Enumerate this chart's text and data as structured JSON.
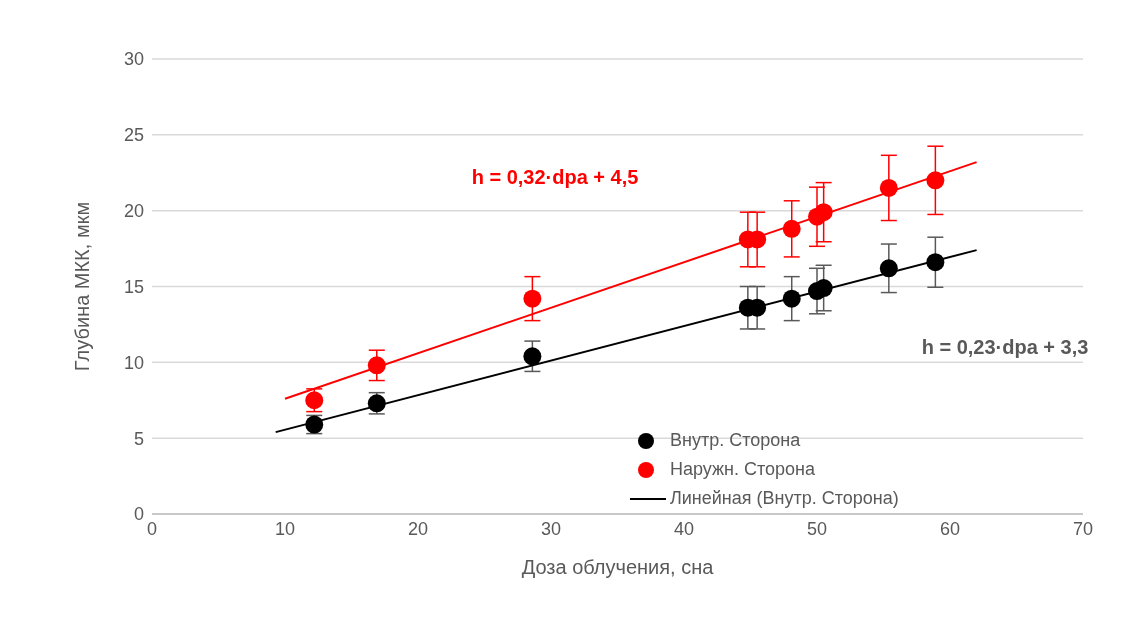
{
  "chart_data": {
    "type": "scatter",
    "xlabel": "Доза облучения, сна",
    "ylabel": "Глубина МКК, мкм",
    "xlim": [
      0,
      70
    ],
    "xticks": [
      0,
      10,
      20,
      30,
      40,
      50,
      60,
      70
    ],
    "ylim": [
      0,
      30
    ],
    "yticks": [
      0,
      5,
      10,
      15,
      20,
      25,
      30
    ],
    "grid": "y",
    "legend": "bottom right",
    "marker": "circle",
    "series": [
      {
        "name": "Внутр. Сторона",
        "color": "#000000",
        "x": [
          12.2,
          16.9,
          28.6,
          44.8,
          45.5,
          48.1,
          50,
          50.5,
          55.4,
          58.9
        ],
        "values": [
          5.9,
          7.3,
          10.4,
          13.6,
          13.6,
          14.2,
          14.7,
          14.9,
          16.2,
          16.6
        ],
        "errors": [
          0.6,
          0.7,
          1,
          1.4,
          1.4,
          1.45,
          1.5,
          1.5,
          1.6,
          1.65
        ]
      },
      {
        "name": "Наружн. Сторона",
        "color": "#ff0000",
        "x": [
          12.2,
          16.9,
          28.6,
          44.8,
          45.5,
          48.1,
          50,
          50.5,
          55.4,
          58.9
        ],
        "values": [
          7.5,
          9.8,
          14.2,
          18.1,
          18.1,
          18.8,
          19.6,
          19.9,
          21.5,
          22
        ],
        "errors": [
          0.75,
          1,
          1.45,
          1.8,
          1.8,
          1.85,
          1.95,
          1.95,
          2.15,
          2.25
        ]
      },
      {
        "type": "line",
        "color": "#ff0000",
        "x": [
          10,
          62
        ],
        "values": [
          7.6,
          23.2
        ],
        "marker": "none"
      },
      {
        "name": "Линейная (Внутр. Сторона)",
        "type": "line",
        "color": "#000000",
        "x": [
          9.3,
          62
        ],
        "values": [
          5.4,
          17.4
        ],
        "marker": "none"
      }
    ],
    "annotations": [
      "h = 0,32·dpa + 4,5",
      "h = 0,23·dpa + 3,3"
    ]
  }
}
